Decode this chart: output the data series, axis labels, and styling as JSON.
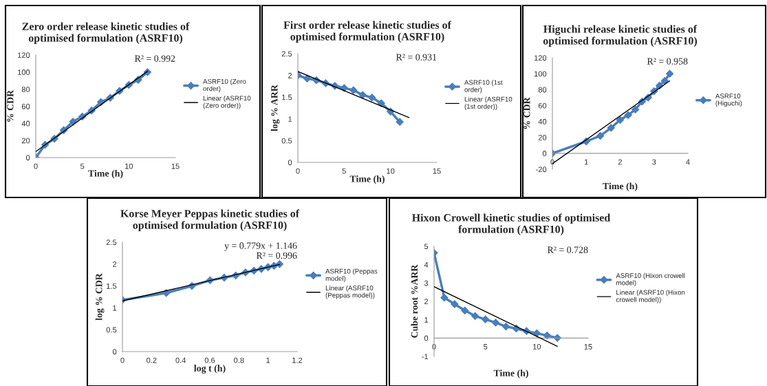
{
  "chart_data": [
    {
      "type": "line",
      "title": "Zero order release kinetic studies of\noptimised formulation (ASRF10)",
      "xlabel": "Time (h)",
      "ylabel": "% CDR",
      "xlim": [
        0,
        15
      ],
      "xticks": [
        0,
        5,
        10,
        15
      ],
      "ylim": [
        0,
        120
      ],
      "yticks": [
        0,
        20,
        40,
        60,
        80,
        100,
        120
      ],
      "legend": "right",
      "annotations": [
        "R² = 0.992"
      ],
      "series": [
        {
          "type": "line",
          "name": "ASRF10 (Zero\norder)",
          "color": "#4a7ebb",
          "marker": "diamond",
          "x": [
            0,
            1,
            2,
            3,
            4,
            5,
            6,
            7,
            8,
            9,
            10,
            11,
            12
          ],
          "values": [
            0,
            15,
            22,
            32,
            42,
            48,
            55,
            65,
            70,
            78,
            85,
            91,
            100
          ]
        },
        {
          "type": "line",
          "name": "Linear (ASRF10\n(Zero order))",
          "color": "#000000",
          "marker": "none",
          "x": [
            0,
            12
          ],
          "values": [
            7,
            101
          ]
        }
      ]
    },
    {
      "type": "line",
      "title": "First order release kinetic studies of\noptimised formulation (ASRF10)",
      "xlabel": "Time (h)",
      "ylabel": "log % ARR",
      "xlim": [
        0,
        15
      ],
      "xticks": [
        0,
        5,
        10,
        15
      ],
      "ylim": [
        0,
        2.5
      ],
      "yticks": [
        0,
        0.5,
        1,
        1.5,
        2,
        2.5
      ],
      "legend": "right",
      "annotations": [
        "R² = 0.931"
      ],
      "series": [
        {
          "type": "line",
          "name": "ASRF10 (1st\norder)",
          "color": "#4a7ebb",
          "marker": "diamond",
          "x": [
            0,
            1,
            2,
            3,
            4,
            5,
            6,
            7,
            8,
            9,
            10,
            11
          ],
          "values": [
            2.0,
            1.93,
            1.89,
            1.82,
            1.76,
            1.71,
            1.66,
            1.55,
            1.49,
            1.36,
            1.17,
            0.93
          ]
        },
        {
          "type": "line",
          "name": "Linear (ASRF10\n(1st order))",
          "color": "#000000",
          "marker": "none",
          "x": [
            0,
            12
          ],
          "values": [
            2.09,
            1.03
          ]
        }
      ]
    },
    {
      "type": "line",
      "title": "Higuchi release kinetic studies of\noptimised formulation (ASRF10)",
      "xlabel": "Time (h)",
      "ylabel": "% CDR",
      "xlim": [
        0,
        4
      ],
      "xticks": [
        0,
        1,
        2,
        3,
        4
      ],
      "ylim": [
        -20,
        120
      ],
      "yticks": [
        -20,
        0,
        20,
        40,
        60,
        80,
        100,
        120
      ],
      "legend": "right",
      "annotations": [
        "R² = 0.958"
      ],
      "series": [
        {
          "type": "line",
          "name": "ASRF10\n(Higuchi)",
          "color": "#4a7ebb",
          "marker": "diamond",
          "x": [
            0,
            1,
            1.414,
            1.732,
            2,
            2.236,
            2.449,
            2.646,
            2.828,
            3,
            3.162,
            3.317,
            3.464
          ],
          "values": [
            0,
            15,
            22,
            32,
            42,
            48,
            55,
            65,
            70,
            78,
            85,
            91,
            100
          ]
        },
        {
          "type": "line",
          "color": "#000000",
          "marker": "none",
          "x": [
            0,
            3.464
          ],
          "values": [
            -13,
            91
          ]
        }
      ]
    },
    {
      "type": "line",
      "title": "Korse Meyer Peppas kinetic studies of\noptimised formulation (ASRF10)",
      "xlabel": "log t (h)",
      "ylabel": "log % CDR",
      "xlim": [
        0,
        1.2
      ],
      "xticks": [
        0,
        0.2,
        0.4,
        0.6,
        0.8,
        1,
        1.2
      ],
      "ylim": [
        0,
        2.5
      ],
      "yticks": [
        0,
        0.5,
        1,
        1.5,
        2,
        2.5
      ],
      "legend": "right",
      "annotations": [
        "y = 0.779x + 1.146",
        "R² = 0.996"
      ],
      "series": [
        {
          "type": "line",
          "name": "ASRF10 (Peppas\nmodel)",
          "color": "#4a7ebb",
          "marker": "diamond",
          "x": [
            0,
            0.301,
            0.477,
            0.602,
            0.699,
            0.778,
            0.845,
            0.903,
            0.954,
            1,
            1.041,
            1.079
          ],
          "values": [
            1.18,
            1.34,
            1.5,
            1.63,
            1.69,
            1.74,
            1.81,
            1.85,
            1.89,
            1.93,
            1.96,
            2.0
          ]
        },
        {
          "type": "line",
          "name": "Linear (ASRF10\n(Peppas model))",
          "color": "#000000",
          "marker": "none",
          "x": [
            0,
            1.079
          ],
          "values": [
            1.16,
            1.99
          ]
        }
      ]
    },
    {
      "type": "line",
      "title": "Hixon Crowell kinetic studies of optimised\nformulation (ASRF10)",
      "xlabel": "Time (h)",
      "ylabel": "Cube root %ARR",
      "xlim": [
        0,
        15
      ],
      "xticks": [
        0,
        5,
        10,
        15
      ],
      "ylim": [
        -1,
        5
      ],
      "yticks": [
        -1,
        0,
        1,
        2,
        3,
        4,
        5
      ],
      "legend": "right",
      "annotations": [
        "R² = 0.728"
      ],
      "series": [
        {
          "type": "line",
          "name": "ASRF10 (Hixon crowell\nmodel)",
          "color": "#4a7ebb",
          "marker": "diamond",
          "x": [
            0,
            1,
            2,
            3,
            4,
            5,
            6,
            7,
            8,
            9,
            10,
            11,
            12
          ],
          "values": [
            4.64,
            2.2,
            1.85,
            1.5,
            1.2,
            1.02,
            0.84,
            0.63,
            0.52,
            0.38,
            0.26,
            0.14,
            0.01
          ]
        },
        {
          "type": "line",
          "name": "Linear (ASRF10 (Hixon\ncrowell model))",
          "color": "#000000",
          "marker": "none",
          "x": [
            0,
            12
          ],
          "values": [
            2.8,
            -0.45
          ]
        }
      ]
    }
  ]
}
